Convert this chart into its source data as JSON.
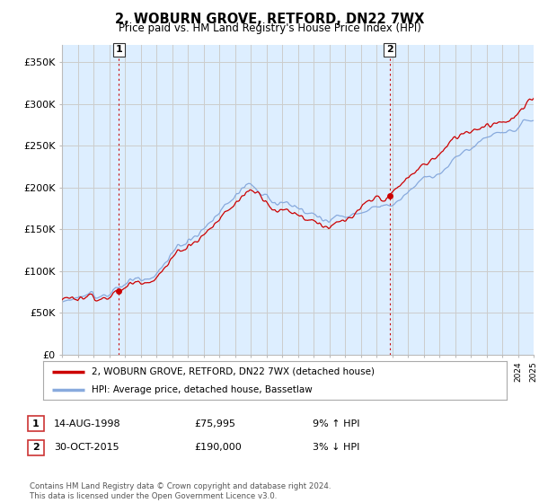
{
  "title": "2, WOBURN GROVE, RETFORD, DN22 7WX",
  "subtitle": "Price paid vs. HM Land Registry's House Price Index (HPI)",
  "bg_color": "#ffffff",
  "grid_color": "#cccccc",
  "plot_bg": "#ddeeff",
  "red_line_color": "#cc0000",
  "blue_line_color": "#88aadd",
  "ylim": [
    0,
    370000
  ],
  "yticks": [
    0,
    50000,
    100000,
    150000,
    200000,
    250000,
    300000,
    350000
  ],
  "ytick_labels": [
    "£0",
    "£50K",
    "£100K",
    "£150K",
    "£200K",
    "£250K",
    "£300K",
    "£350K"
  ],
  "sale1_year": 1998.62,
  "sale1_price": 75995,
  "sale2_year": 2015.83,
  "sale2_price": 190000,
  "legend_label_red": "2, WOBURN GROVE, RETFORD, DN22 7WX (detached house)",
  "legend_label_blue": "HPI: Average price, detached house, Bassetlaw",
  "table_row1_num": "1",
  "table_row1_date": "14-AUG-1998",
  "table_row1_price": "£75,995",
  "table_row1_hpi": "9% ↑ HPI",
  "table_row2_num": "2",
  "table_row2_date": "30-OCT-2015",
  "table_row2_price": "£190,000",
  "table_row2_hpi": "3% ↓ HPI",
  "footer": "Contains HM Land Registry data © Crown copyright and database right 2024.\nThis data is licensed under the Open Government Licence v3.0.",
  "vline1_year": 1998.62,
  "vline2_year": 2015.83
}
